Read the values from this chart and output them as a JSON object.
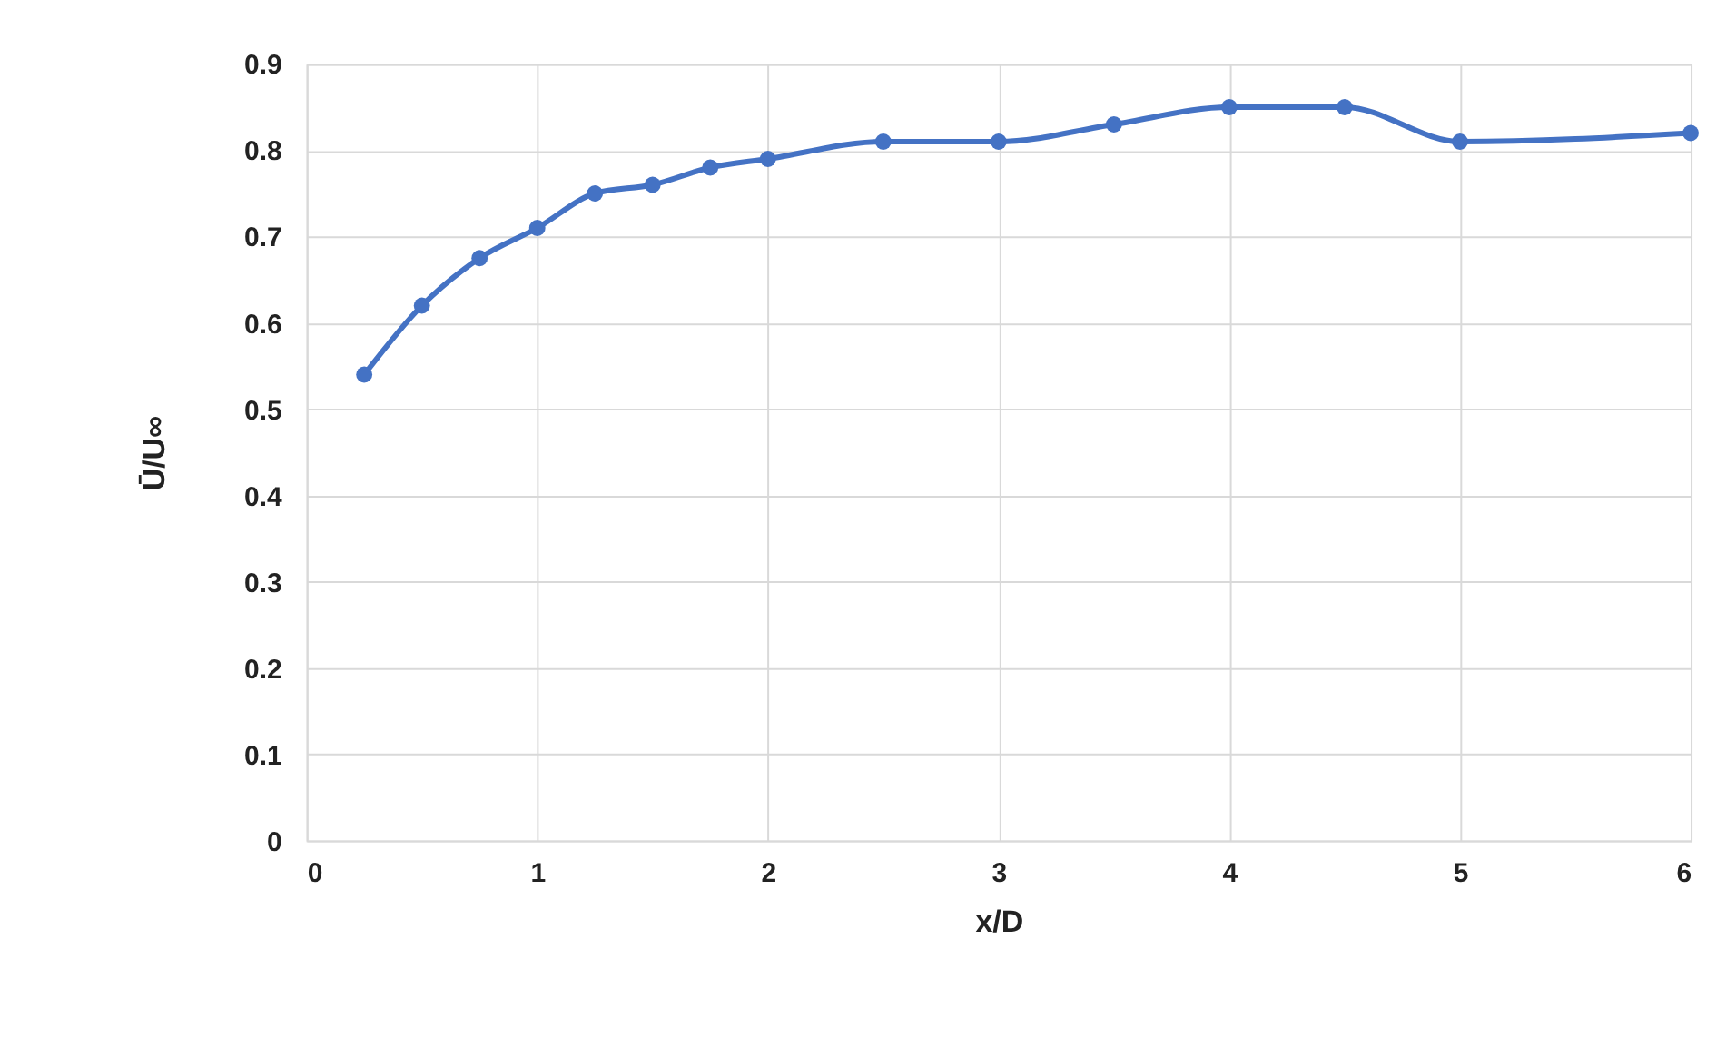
{
  "chart_data": {
    "type": "line",
    "xlabel": "x/D",
    "ylabel": "Ū/U∞",
    "x": [
      0.25,
      0.5,
      0.75,
      1,
      1.25,
      1.5,
      1.75,
      2,
      2.5,
      3,
      3.5,
      4,
      4.5,
      5,
      6
    ],
    "series": [
      {
        "color": "#4472c4",
        "values": [
          0.54,
          0.62,
          0.675,
          0.71,
          0.75,
          0.76,
          0.78,
          0.79,
          0.81,
          0.81,
          0.83,
          0.85,
          0.85,
          0.81,
          0.82
        ]
      }
    ],
    "xlim": [
      0,
      6
    ],
    "xticks": [
      0,
      1,
      2,
      3,
      4,
      5,
      6
    ],
    "ylim": [
      0,
      0.9
    ],
    "yticks": [
      0,
      0.1,
      0.2,
      0.3,
      0.4,
      0.5,
      0.6,
      0.7,
      0.8,
      0.9
    ],
    "grid": true,
    "marker": "circle",
    "line_style": "solid",
    "legend": false
  }
}
